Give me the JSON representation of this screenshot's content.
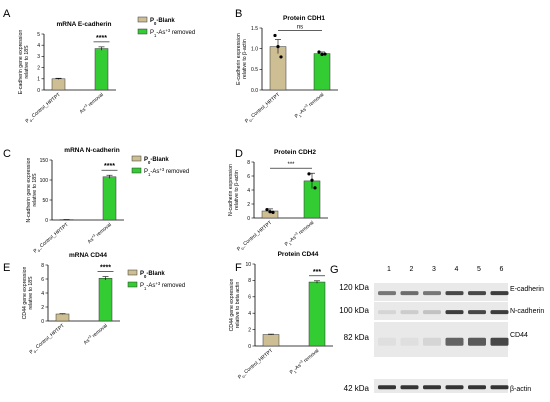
{
  "colors": {
    "blank": "#cdbf93",
    "arsenic": "#33cc33",
    "axis": "#000000",
    "blot_bg": "#e9e9e9",
    "band": "#2a2a2a"
  },
  "chart_data": [
    {
      "panel": "A",
      "type": "bar",
      "title": "mRNA E-cadherin",
      "ylabel": "E-cadherin gene expression\nrelative to 18S",
      "categories": [
        "P0_Control_HRTPT",
        "As+3 removal"
      ],
      "values": [
        1.0,
        3.7
      ],
      "errors": [
        0.05,
        0.15
      ],
      "ylim": [
        0,
        5
      ],
      "yticks": [
        0,
        1,
        2,
        3,
        4,
        5
      ],
      "significance": "****",
      "legend": [
        "P0-Blank",
        "P1-As+3 removed"
      ]
    },
    {
      "panel": "B",
      "type": "bar",
      "title": "Protein CDH1",
      "ylabel": "E-cadherin expression\nrelative to β-actin",
      "categories": [
        "P0_Control_HRTPT",
        "P1-As+3 removal"
      ],
      "values": [
        1.05,
        0.88
      ],
      "errors": [
        0.17,
        0.04
      ],
      "points": [
        [
          1.32,
          1.05,
          0.8
        ],
        [
          0.92,
          0.86,
          0.87
        ]
      ],
      "ylim": [
        0,
        1.5
      ],
      "yticks": [
        0.0,
        0.5,
        1.0,
        1.5
      ],
      "significance": "ns"
    },
    {
      "panel": "C",
      "type": "bar",
      "title": "mRNA N-cadherin",
      "ylabel": "N-cadherin gene expression\nrelative to 18S",
      "categories": [
        "P0_Control_HRTPT",
        "As+3 removal"
      ],
      "values": [
        1.0,
        108
      ],
      "errors": [
        0.05,
        4
      ],
      "ylim": [
        0,
        150
      ],
      "yticks": [
        0,
        50,
        100,
        150
      ],
      "significance": "****",
      "legend": [
        "P0-Blank",
        "P1-As+3 removed"
      ]
    },
    {
      "panel": "D",
      "type": "bar",
      "title": "Protein CDH2",
      "ylabel": "N-cadherin expression\nrelative to β-actin",
      "categories": [
        "P0_Control_HRTPT",
        "P1-As+3 removal"
      ],
      "values": [
        1.0,
        5.3
      ],
      "errors": [
        0.3,
        1.1
      ],
      "points": [
        [
          1.2,
          0.9,
          0.8
        ],
        [
          6.3,
          5.4,
          4.3
        ]
      ],
      "ylim": [
        0,
        8
      ],
      "yticks": [
        0,
        2,
        4,
        6,
        8
      ],
      "significance": "***"
    },
    {
      "panel": "E",
      "type": "bar",
      "title": "mRNA CD44",
      "ylabel": "CD44 gene expression\nrelative to 18S",
      "categories": [
        "P0_Control_HRTPT",
        "As+3 removal"
      ],
      "values": [
        1.0,
        6.1
      ],
      "errors": [
        0.05,
        0.25
      ],
      "ylim": [
        0,
        8
      ],
      "yticks": [
        0,
        2,
        4,
        6,
        8
      ],
      "significance": "****",
      "legend": [
        "P0-Blank",
        "P1-As+3 removed"
      ]
    },
    {
      "panel": "F",
      "type": "bar",
      "title": "Protein CD44",
      "ylabel": "CD44 gene expression\nrelative to beta actin",
      "categories": [
        "P0_Control_HRTPT",
        "P1-As+3 removal"
      ],
      "values": [
        1.4,
        7.8
      ],
      "errors": [
        0.05,
        0.15
      ],
      "ylim": [
        0,
        10
      ],
      "yticks": [
        0,
        2,
        4,
        6,
        8,
        10
      ],
      "significance": "***"
    }
  ],
  "blot": {
    "panel": "G",
    "lanes": [
      "1",
      "2",
      "3",
      "4",
      "5",
      "6"
    ],
    "markers": [
      "120 kDa",
      "100 kDa",
      "82 kDa",
      "42 kDa"
    ],
    "proteins": [
      "E-cadherin",
      "N-cadherin",
      "CD44",
      "β-actin"
    ],
    "intensity": [
      [
        0.6,
        0.65,
        0.6,
        0.85,
        0.85,
        0.9
      ],
      [
        0.1,
        0.15,
        0.2,
        0.9,
        0.85,
        0.9
      ],
      [
        0.05,
        0.05,
        0.1,
        0.7,
        0.75,
        0.85
      ],
      [
        0.95,
        0.95,
        0.95,
        0.95,
        0.95,
        0.95
      ]
    ]
  }
}
